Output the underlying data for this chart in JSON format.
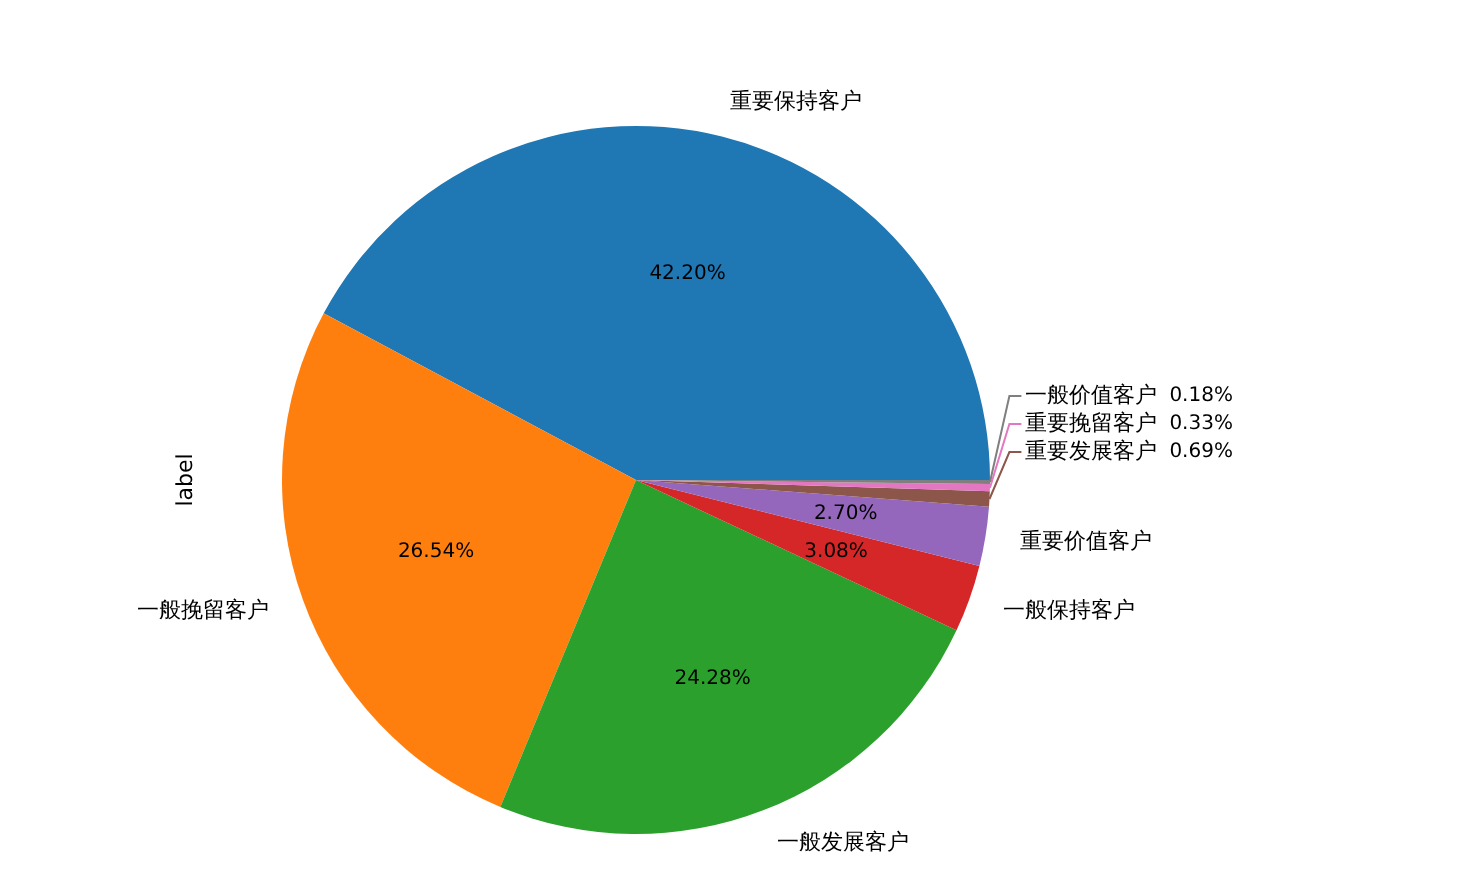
{
  "chart_data": {
    "type": "pie",
    "ylabel": "label",
    "categories": [
      "重要保持客户",
      "一般挽留客户",
      "一般发展客户",
      "一般保持客户",
      "重要价值客户",
      "重要发展客户",
      "重要挽留客户",
      "一般价值客户"
    ],
    "values": [
      42.2,
      26.54,
      24.28,
      3.08,
      2.7,
      0.69,
      0.33,
      0.18
    ],
    "colors": [
      "#1f77b4",
      "#ff7f0e",
      "#2ca02c",
      "#d62728",
      "#9467bd",
      "#8c564b",
      "#e377c2",
      "#7f7f7f"
    ],
    "value_labels": [
      "42.20%",
      "26.54%",
      "24.28%",
      "3.08%",
      "2.70%",
      "0.69%",
      "0.33%",
      "0.18%"
    ]
  }
}
